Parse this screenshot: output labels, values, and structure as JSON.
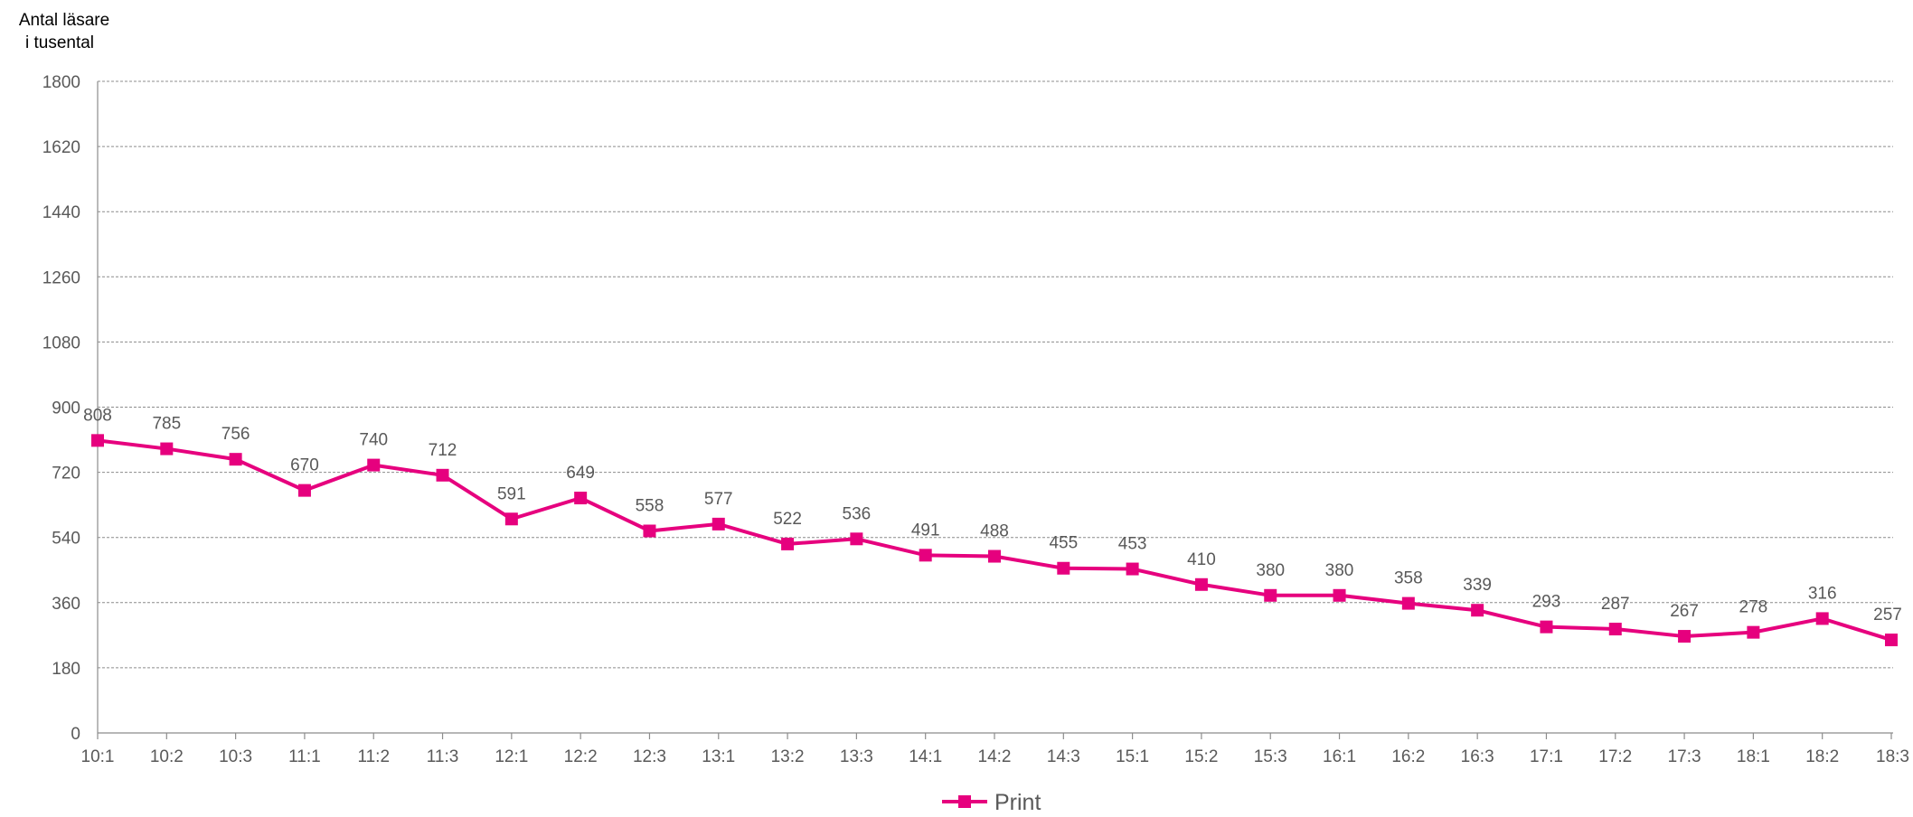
{
  "chart_data": {
    "type": "line",
    "title": "",
    "ylabel_lines": [
      "Antal läsare",
      "i tusental"
    ],
    "xlabel": "",
    "ylim": [
      0,
      1800
    ],
    "yticks": [
      0,
      180,
      360,
      540,
      720,
      900,
      1080,
      1260,
      1440,
      1620,
      1800
    ],
    "ytick_labels": [
      "0",
      "180",
      "360",
      "540",
      "720",
      "900",
      "1080",
      "1260",
      "1440",
      "1620",
      "1800"
    ],
    "grid": "horizontal dashed",
    "legend_position": "bottom-center",
    "categories": [
      "10:1",
      "10:2",
      "10:3",
      "11:1",
      "11:2",
      "11:3",
      "12:1",
      "12:2",
      "12:3",
      "13:1",
      "13:2",
      "13:3",
      "14:1",
      "14:2",
      "14:3",
      "15:1",
      "15:2",
      "15:3",
      "16:1",
      "16:2",
      "16:3",
      "17:1",
      "17:2",
      "17:3",
      "18:1",
      "18:2",
      "18:3"
    ],
    "series": [
      {
        "name": "Print",
        "color": "#e6007e",
        "marker": "square",
        "values": [
          808,
          785,
          756,
          670,
          740,
          712,
          591,
          649,
          558,
          577,
          522,
          536,
          491,
          488,
          455,
          453,
          410,
          380,
          380,
          358,
          339,
          293,
          287,
          267,
          278,
          316,
          257
        ],
        "data_labels": [
          "808",
          "785",
          "756",
          "670",
          "740",
          "712",
          "591",
          "649",
          "558",
          "577",
          "522",
          "536",
          "491",
          "488",
          "455",
          "453",
          "410",
          "380",
          "380",
          "358",
          "339",
          "293",
          "287",
          "267",
          "278",
          "316",
          "257"
        ]
      }
    ]
  }
}
